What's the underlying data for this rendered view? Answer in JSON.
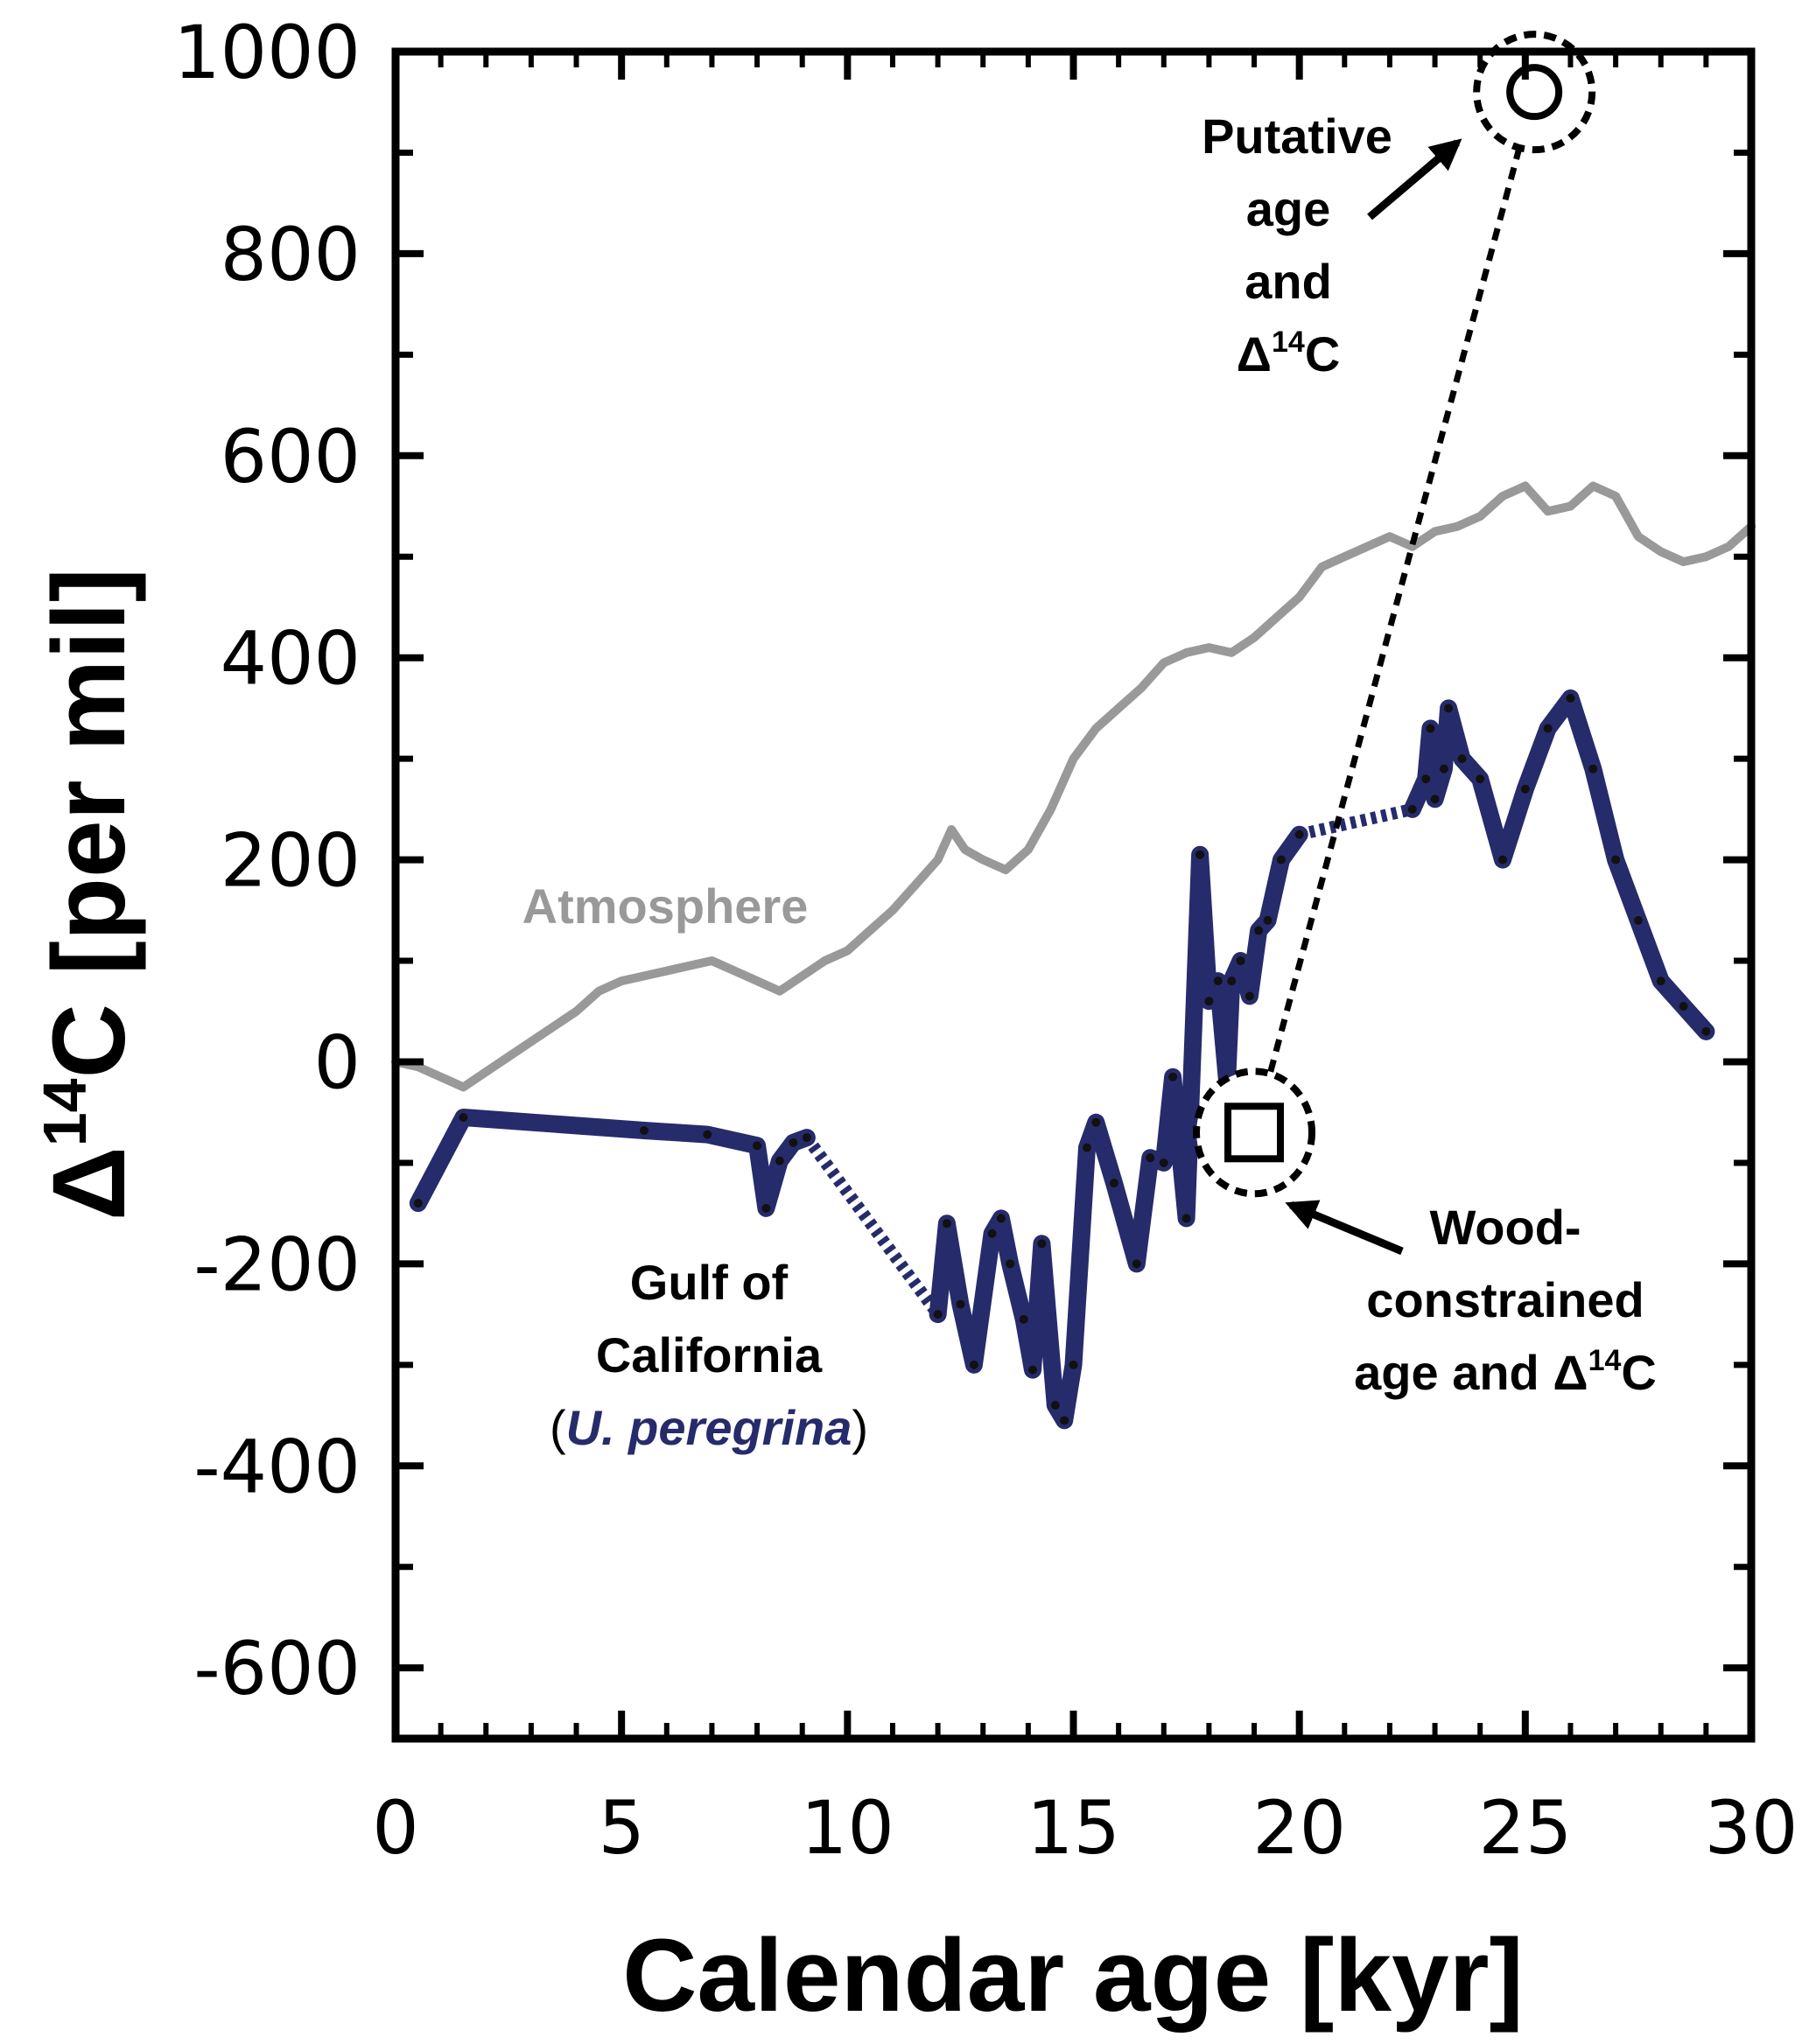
{
  "chart_data": {
    "type": "line",
    "xlabel": "Calendar age [kyr]",
    "ylabel_parts": {
      "delta": "Δ",
      "sup": "14",
      "rest": "C [per mil]"
    },
    "xlim": [
      0,
      30
    ],
    "ylim": [
      -670,
      1000
    ],
    "xticks": [
      0,
      5,
      10,
      15,
      20,
      25,
      30
    ],
    "xtick_labels": [
      "0",
      "5",
      "10",
      "15",
      "20",
      "25",
      "30"
    ],
    "yticks": [
      -600,
      -400,
      -200,
      0,
      200,
      400,
      600,
      800,
      1000
    ],
    "ytick_labels": [
      "-600",
      "-400",
      "-200",
      "0",
      "200",
      "400",
      "600",
      "800",
      "1000"
    ],
    "yminor": [
      -500,
      -300,
      -100,
      100,
      300,
      500,
      700,
      900
    ],
    "colors": {
      "gulf": "#262b6b",
      "atmosphere": "#999999",
      "annotation": "#000000"
    },
    "series": [
      {
        "name": "Atmosphere",
        "style": "line",
        "x": [
          0,
          0.5,
          1,
          1.5,
          2,
          2.5,
          3,
          3.5,
          4,
          4.5,
          5,
          5.5,
          6,
          6.5,
          7,
          7.5,
          8,
          8.5,
          9,
          9.5,
          10,
          10.5,
          11,
          11.5,
          12,
          12.3,
          12.6,
          13,
          13.5,
          14,
          14.5,
          15,
          15.5,
          16,
          16.5,
          17,
          17.5,
          18,
          18.5,
          19,
          19.5,
          20,
          20.5,
          21,
          21.5,
          22,
          22.5,
          23,
          23.5,
          24,
          24.5,
          25,
          25.5,
          26,
          26.5,
          27,
          27.5,
          28,
          28.5,
          29,
          29.5,
          30
        ],
        "y": [
          0,
          -5,
          -15,
          -25,
          -10,
          5,
          20,
          35,
          50,
          70,
          80,
          85,
          90,
          95,
          100,
          90,
          80,
          70,
          85,
          100,
          110,
          130,
          150,
          175,
          200,
          230,
          210,
          200,
          190,
          210,
          250,
          300,
          330,
          350,
          370,
          395,
          405,
          410,
          405,
          420,
          440,
          460,
          490,
          500,
          510,
          520,
          510,
          525,
          530,
          540,
          560,
          570,
          545,
          550,
          570,
          560,
          520,
          505,
          495,
          500,
          510,
          530
        ]
      },
      {
        "name": "Gulf of California (U. peregrina)",
        "style": "thick",
        "segments": [
          {
            "x": [
              0.5,
              1.5,
              5.5,
              6.9,
              8.0,
              8.2,
              8.5,
              8.8,
              9.1
            ],
            "y": [
              -140,
              -55,
              -68,
              -72,
              -83,
              -145,
              -98,
              -80,
              -75
            ]
          },
          {
            "x": [
              12.0,
              12.2,
              12.5,
              12.8,
              13.2,
              13.4,
              13.6,
              13.9,
              14.1,
              14.3,
              14.6,
              14.8,
              15.0,
              15.3,
              15.5,
              15.9,
              16.4,
              16.7,
              17.0,
              17.2,
              17.5,
              17.8,
              18.0,
              18.2,
              18.4,
              18.5,
              18.7,
              18.9,
              19.1,
              19.3,
              19.6,
              20.0
            ],
            "y": [
              -250,
              -160,
              -240,
              -300,
              -170,
              -155,
              -200,
              -255,
              -305,
              -180,
              -340,
              -355,
              -300,
              -85,
              -60,
              -120,
              -200,
              -95,
              -100,
              -15,
              -155,
              205,
              60,
              80,
              -20,
              80,
              100,
              65,
              130,
              140,
              200,
              225
            ]
          },
          {
            "x": [
              22.5,
              22.8,
              22.9,
              23.0,
              23.2,
              23.3,
              23.6,
              24.0,
              24.5,
              25.0,
              25.5,
              26.0,
              26.5,
              27.0,
              27.5,
              28.0,
              28.5,
              29.0
            ],
            "y": [
              250,
              280,
              330,
              260,
              290,
              350,
              300,
              280,
              200,
              270,
              330,
              360,
              290,
              200,
              140,
              80,
              55,
              30
            ]
          }
        ],
        "gap_links": [
          {
            "x": [
              9.1,
              12.0
            ],
            "y": [
              -75,
              -250
            ]
          },
          {
            "x": [
              20.0,
              22.5
            ],
            "y": [
              225,
              250
            ]
          }
        ]
      }
    ],
    "points": [
      {
        "name": "Wood-constrained age and Δ14C",
        "marker": "square",
        "x": 19.0,
        "y": -70
      },
      {
        "name": "Putative age and Δ14C",
        "marker": "circle",
        "x": 25.2,
        "y": 960
      }
    ],
    "connector": {
      "from": [
        19.0,
        -70
      ],
      "to": [
        25.2,
        960
      ],
      "style": "dotted"
    },
    "annotations": [
      {
        "id": "atmosphere",
        "lines": [
          "Atmosphere"
        ]
      },
      {
        "id": "gulf",
        "lines": [
          "Gulf of",
          "California"
        ],
        "paren_open": "(",
        "species": "U. peregrina",
        "paren_close": ")"
      },
      {
        "id": "wood",
        "lines": [
          "Wood-",
          "constrained",
          "age and Δ"
        ],
        "sup": "14",
        "tail": "C"
      },
      {
        "id": "putative",
        "lines": [
          "Putative",
          "age",
          "and",
          "Δ"
        ],
        "sup": "14",
        "tail": "C"
      }
    ]
  }
}
